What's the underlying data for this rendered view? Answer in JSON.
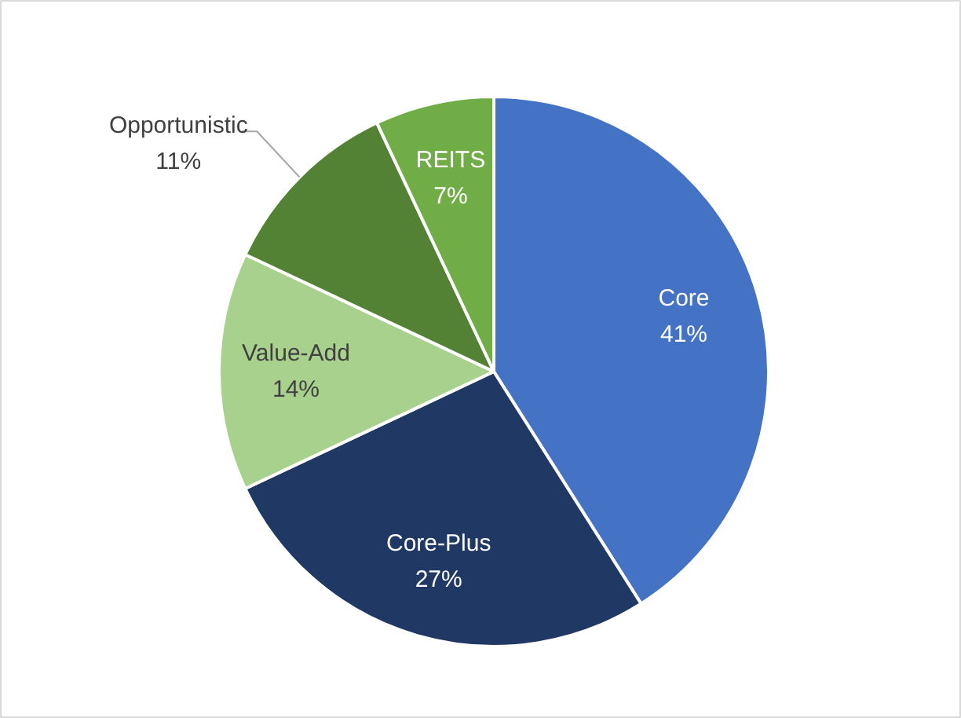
{
  "chart_data": {
    "type": "pie",
    "categories": [
      "Core",
      "Core-Plus",
      "Value-Add",
      "Opportunistic",
      "REITS"
    ],
    "values": [
      41,
      27,
      14,
      11,
      7
    ],
    "value_labels": [
      "41%",
      "27%",
      "14%",
      "11%",
      "7%"
    ],
    "colors": [
      "#4472c4",
      "#203864",
      "#a9d18e",
      "#548235",
      "#70ad47"
    ]
  }
}
